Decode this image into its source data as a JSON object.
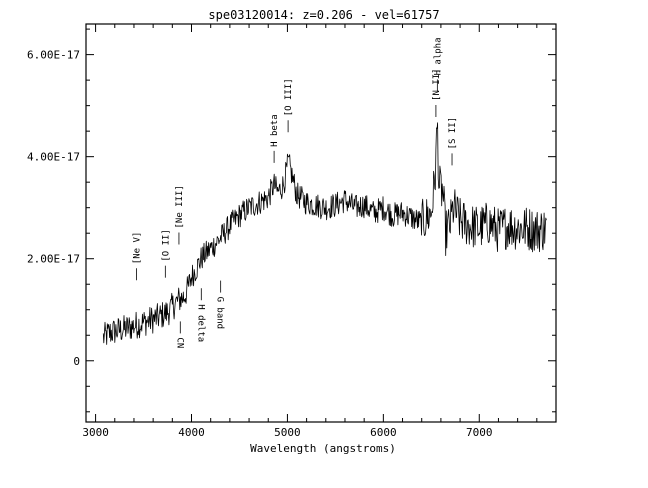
{
  "chart_data": {
    "type": "line",
    "title": "spe03120014: z=0.206 - vel=61757",
    "xlabel": "Wavelength (angstroms)",
    "ylabel": "",
    "xlim": [
      2900,
      7800
    ],
    "ylim": [
      -1.2e-17,
      6.6e-17
    ],
    "x_ticks": [
      3000,
      4000,
      5000,
      6000,
      7000
    ],
    "x_tick_labels": [
      "3000",
      "4000",
      "5000",
      "6000",
      "7000"
    ],
    "y_ticks": [
      0,
      2e-17,
      4e-17,
      6e-17
    ],
    "y_tick_labels": [
      "0",
      "2.00E-17",
      "4.00E-17",
      "6.00E-17"
    ],
    "grid": false,
    "legend": "none",
    "line_color": "#000000",
    "series": [
      {
        "x": [
          3080,
          3150,
          3250,
          3350,
          3450,
          3550,
          3650,
          3750,
          3820,
          3870,
          3920,
          3960,
          4000,
          4050,
          4100,
          4200,
          4300,
          4400,
          4500,
          4600,
          4700,
          4800,
          4860,
          4900,
          4960,
          5010,
          5100,
          5200,
          5300,
          5400,
          5500,
          5600,
          5700,
          5800,
          5900,
          6000,
          6100,
          6200,
          6300,
          6400,
          6500,
          6540,
          6563,
          6580,
          6620,
          6650,
          6700,
          6730,
          6800,
          6900,
          7000,
          7100,
          7200,
          7300,
          7400,
          7500,
          7600,
          7700
        ],
        "y": [
          4.5e-18,
          5.5e-18,
          6e-18,
          6.5e-18,
          7.2e-18,
          7.8e-18,
          8.5e-18,
          9.5e-18,
          1.1e-17,
          1.2e-17,
          1.25e-17,
          1.4e-17,
          1.65e-17,
          1.8e-17,
          2e-17,
          2.2e-17,
          2.4e-17,
          2.65e-17,
          2.85e-17,
          3e-17,
          3.1e-17,
          3.2e-17,
          3.45e-17,
          3.3e-17,
          3.45e-17,
          3.9e-17,
          3.25e-17,
          3.1e-17,
          3.05e-17,
          3e-17,
          3.05e-17,
          3.15e-17,
          3e-17,
          3.05e-17,
          2.9e-17,
          3e-17,
          2.85e-17,
          2.9e-17,
          2.8e-17,
          2.7e-17,
          2.9e-17,
          3.6e-17,
          4.7e-17,
          3.4e-17,
          3.3e-17,
          2.5e-17,
          2.7e-17,
          3e-17,
          2.75e-17,
          2.65e-17,
          2.6e-17,
          2.7e-17,
          2.55e-17,
          2.65e-17,
          2.6e-17,
          2.6e-17,
          2.55e-17,
          2.6e-17
        ]
      }
    ],
    "annotations": [
      {
        "label": "[Ne V]",
        "x": 3426,
        "y": 1.5e-17,
        "side": "above"
      },
      {
        "label": "[O II]",
        "x": 3727,
        "y": 1.55e-17,
        "side": "above"
      },
      {
        "label": "[Ne III]",
        "x": 3869,
        "y": 2.2e-17,
        "side": "above"
      },
      {
        "label": "CN",
        "x": 3883,
        "y": 8.5e-18,
        "side": "below"
      },
      {
        "label": "H delta",
        "x": 4102,
        "y": 1.5e-17,
        "side": "below"
      },
      {
        "label": "G band",
        "x": 4304,
        "y": 1.65e-17,
        "side": "below"
      },
      {
        "label": "H beta",
        "x": 4861,
        "y": 3.8e-17,
        "side": "above"
      },
      {
        "label": "[O III]",
        "x": 5007,
        "y": 4.4e-17,
        "side": "above"
      },
      {
        "label": "[N II]",
        "x": 6548,
        "y": 4.7e-17,
        "side": "above"
      },
      {
        "label": "H alpha",
        "x": 6563,
        "y": 5.2e-17,
        "side": "above"
      },
      {
        "label": "[S II]",
        "x": 6716,
        "y": 3.75e-17,
        "side": "above"
      }
    ]
  }
}
